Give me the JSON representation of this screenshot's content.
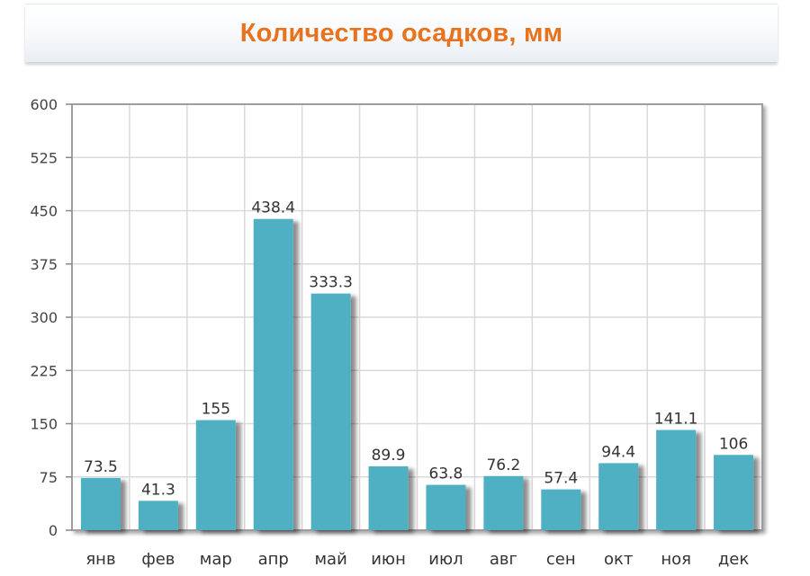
{
  "title": "Количество осадков, мм",
  "colors": {
    "title": "#e8731e",
    "bar": "#4fb0c4",
    "bar_shadow": "#9a9a9a",
    "grid": "#d9d9d9",
    "plot_border": "#9e9e9e"
  },
  "chart_data": {
    "type": "bar",
    "title": "Количество осадков, мм",
    "xlabel": "",
    "ylabel": "",
    "categories": [
      "янв",
      "фев",
      "мар",
      "апр",
      "май",
      "июн",
      "июл",
      "авг",
      "сен",
      "окт",
      "ноя",
      "дек"
    ],
    "values": [
      73.5,
      41.3,
      155,
      438.4,
      333.3,
      89.9,
      63.8,
      76.2,
      57.4,
      94.4,
      141.1,
      106
    ],
    "value_labels": [
      "73.5",
      "41.3",
      "155",
      "438.4",
      "333.3",
      "89.9",
      "63.8",
      "76.2",
      "57.4",
      "94.4",
      "141.1",
      "106"
    ],
    "ylim": [
      0,
      600
    ],
    "yticks": [
      0,
      75,
      150,
      225,
      300,
      375,
      450,
      525,
      600
    ],
    "grid": true,
    "legend": "none"
  }
}
